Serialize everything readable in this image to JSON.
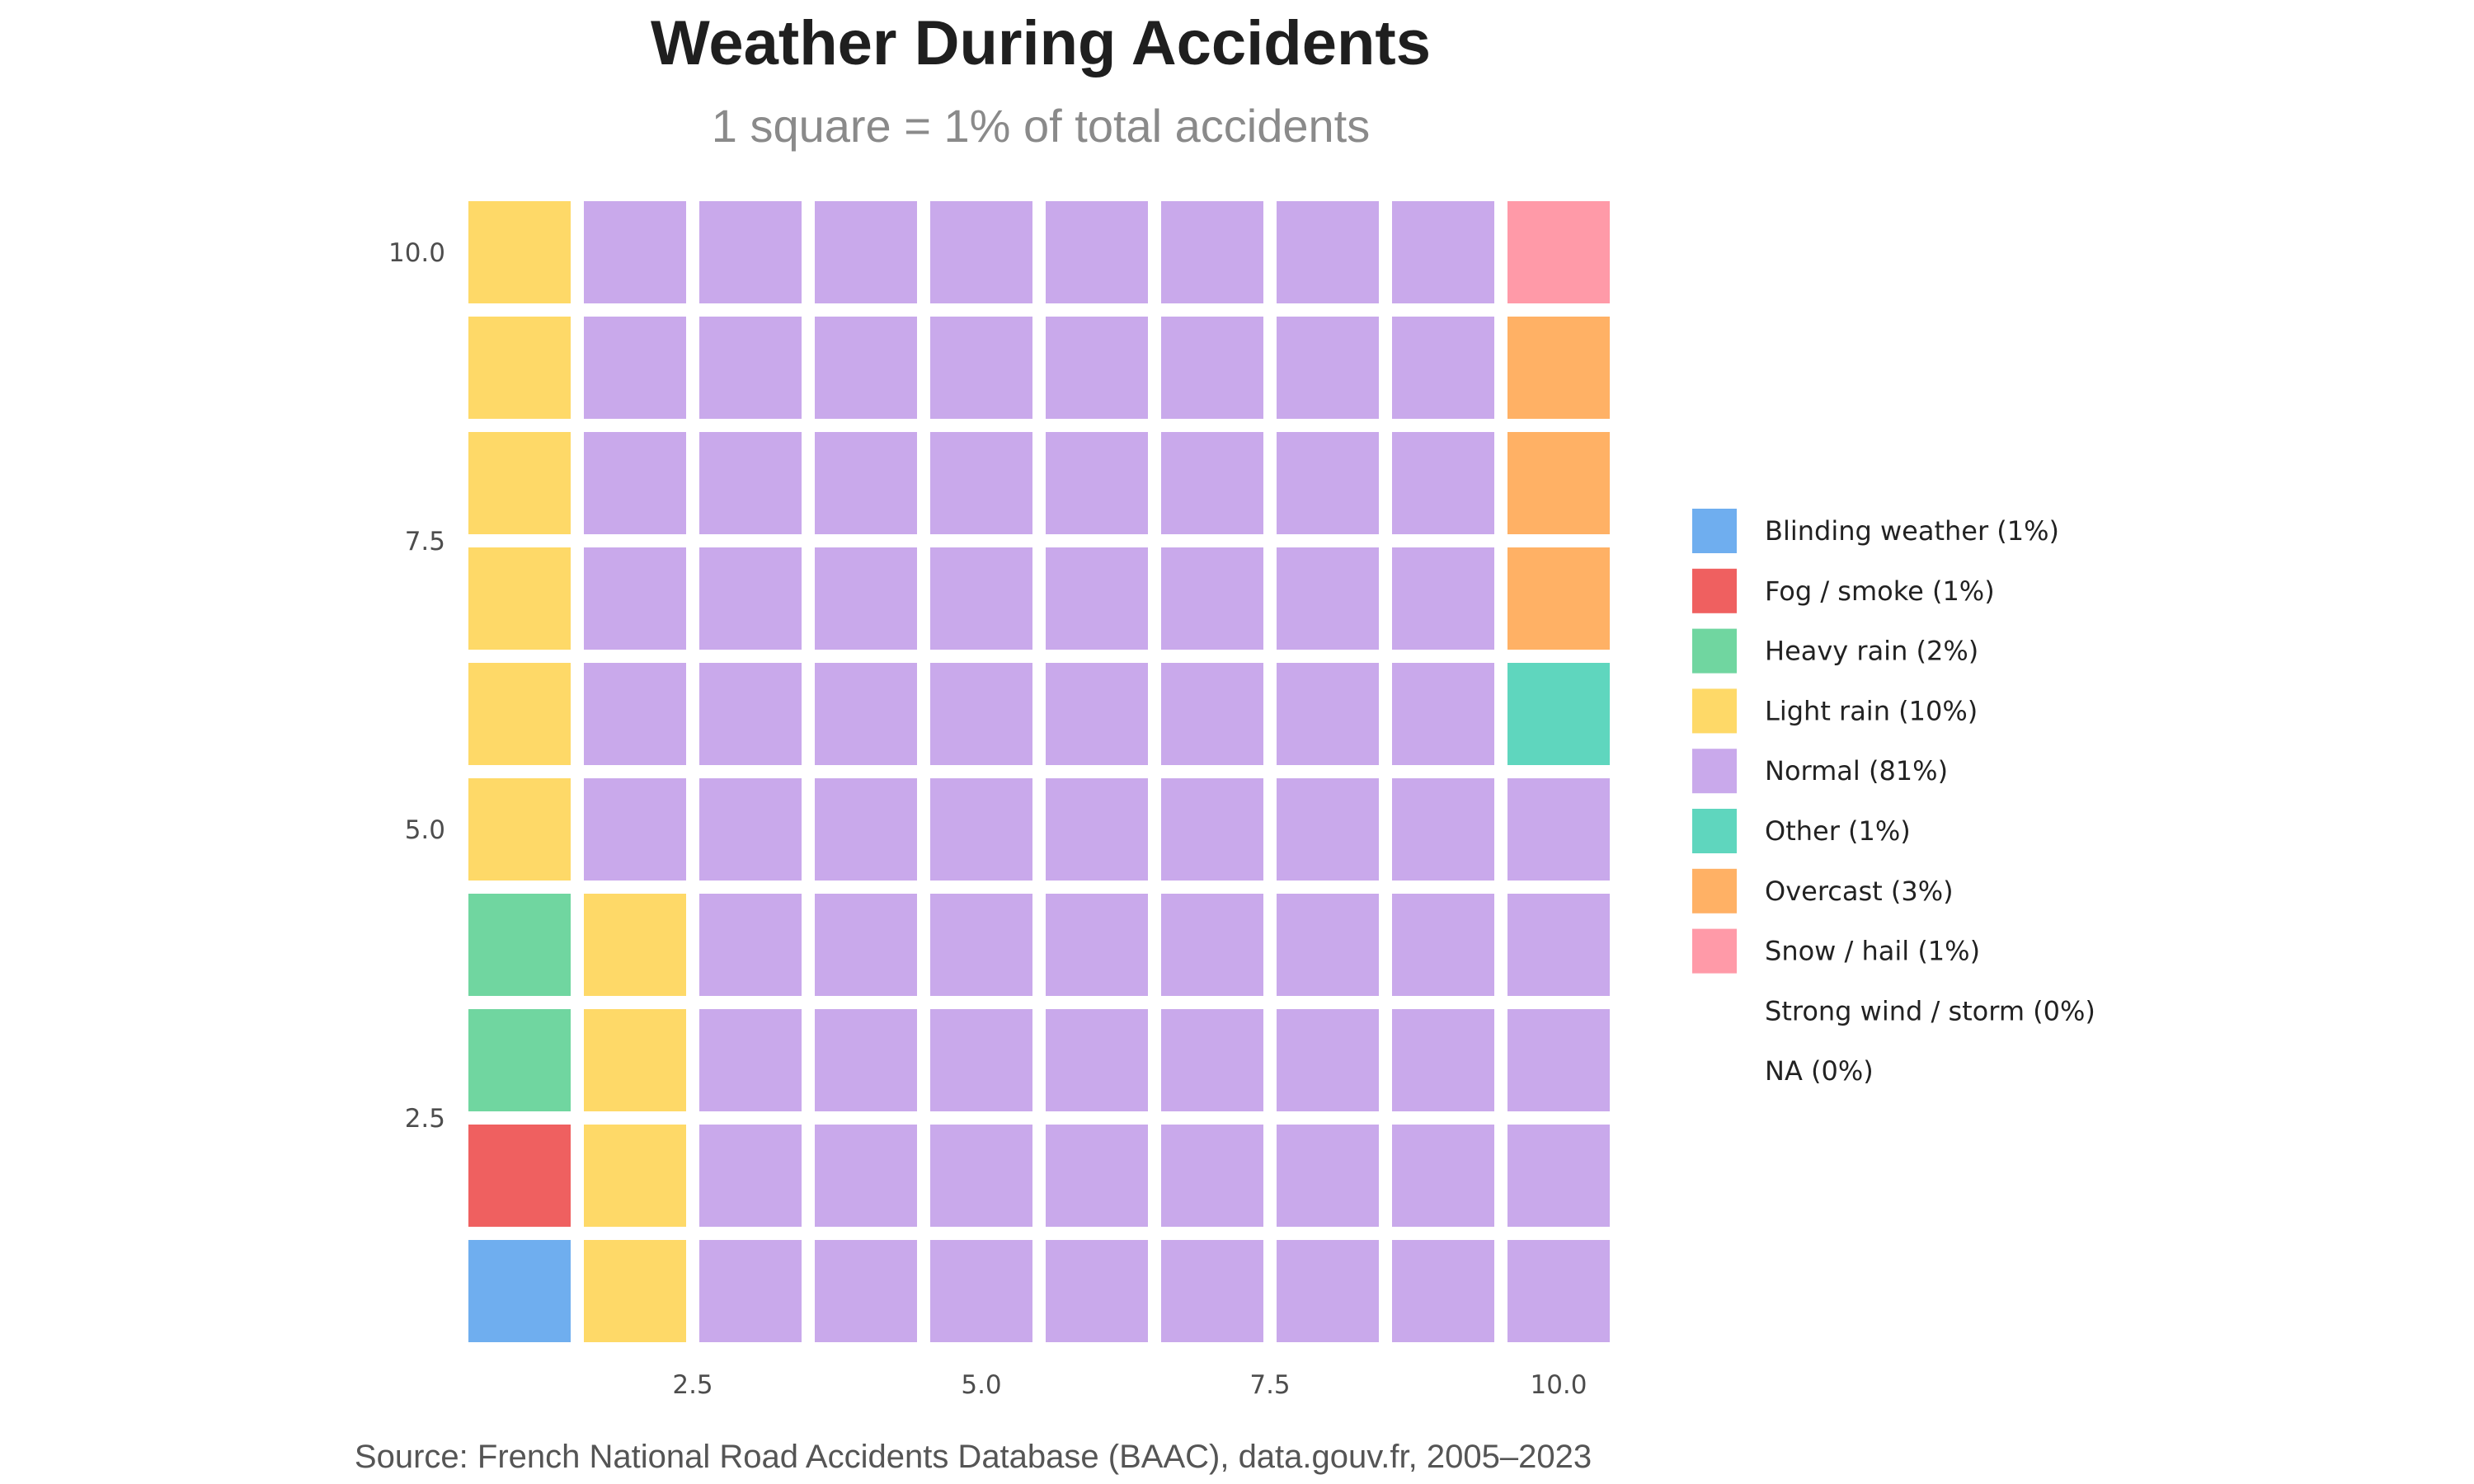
{
  "chart_data": {
    "type": "waffle",
    "title": "Weather During Accidents",
    "subtitle": "1 square = 1% of total accidents",
    "caption": "Source: French National Road Accidents Database (BAAC), data.gouv.fr, 2005–2023",
    "grid": {
      "rows": 10,
      "cols": 10
    },
    "xlim": [
      0.5,
      10.5
    ],
    "ylim": [
      0.5,
      10.5
    ],
    "x_ticks": [
      "2.5",
      "5.0",
      "7.5",
      "10.0"
    ],
    "y_ticks": [
      "2.5",
      "5.0",
      "7.5",
      "10.0"
    ],
    "legend_position": "right",
    "categories": [
      {
        "name": "Blinding weather",
        "label": "Blinding weather (1%)",
        "value": 1,
        "color": "#6FAEEF"
      },
      {
        "name": "Fog / smoke",
        "label": "Fog / smoke (1%)",
        "value": 1,
        "color": "#EF6060"
      },
      {
        "name": "Heavy rain",
        "label": "Heavy rain (2%)",
        "value": 2,
        "color": "#70D6A0"
      },
      {
        "name": "Light rain",
        "label": "Light rain (10%)",
        "value": 10,
        "color": "#FED968"
      },
      {
        "name": "Normal",
        "label": "Normal (81%)",
        "value": 81,
        "color": "#C9A9EB"
      },
      {
        "name": "Other",
        "label": "Other (1%)",
        "value": 1,
        "color": "#5FD6BE"
      },
      {
        "name": "Overcast",
        "label": "Overcast (3%)",
        "value": 3,
        "color": "#FFB165"
      },
      {
        "name": "Snow / hail",
        "label": "Snow / hail (1%)",
        "value": 1,
        "color": "#FF9AA8"
      },
      {
        "name": "Strong wind / storm",
        "label": "Strong wind / storm (0%)",
        "value": 0,
        "color": ""
      },
      {
        "name": "NA",
        "label": "NA (0%)",
        "value": 0,
        "color": ""
      }
    ]
  }
}
